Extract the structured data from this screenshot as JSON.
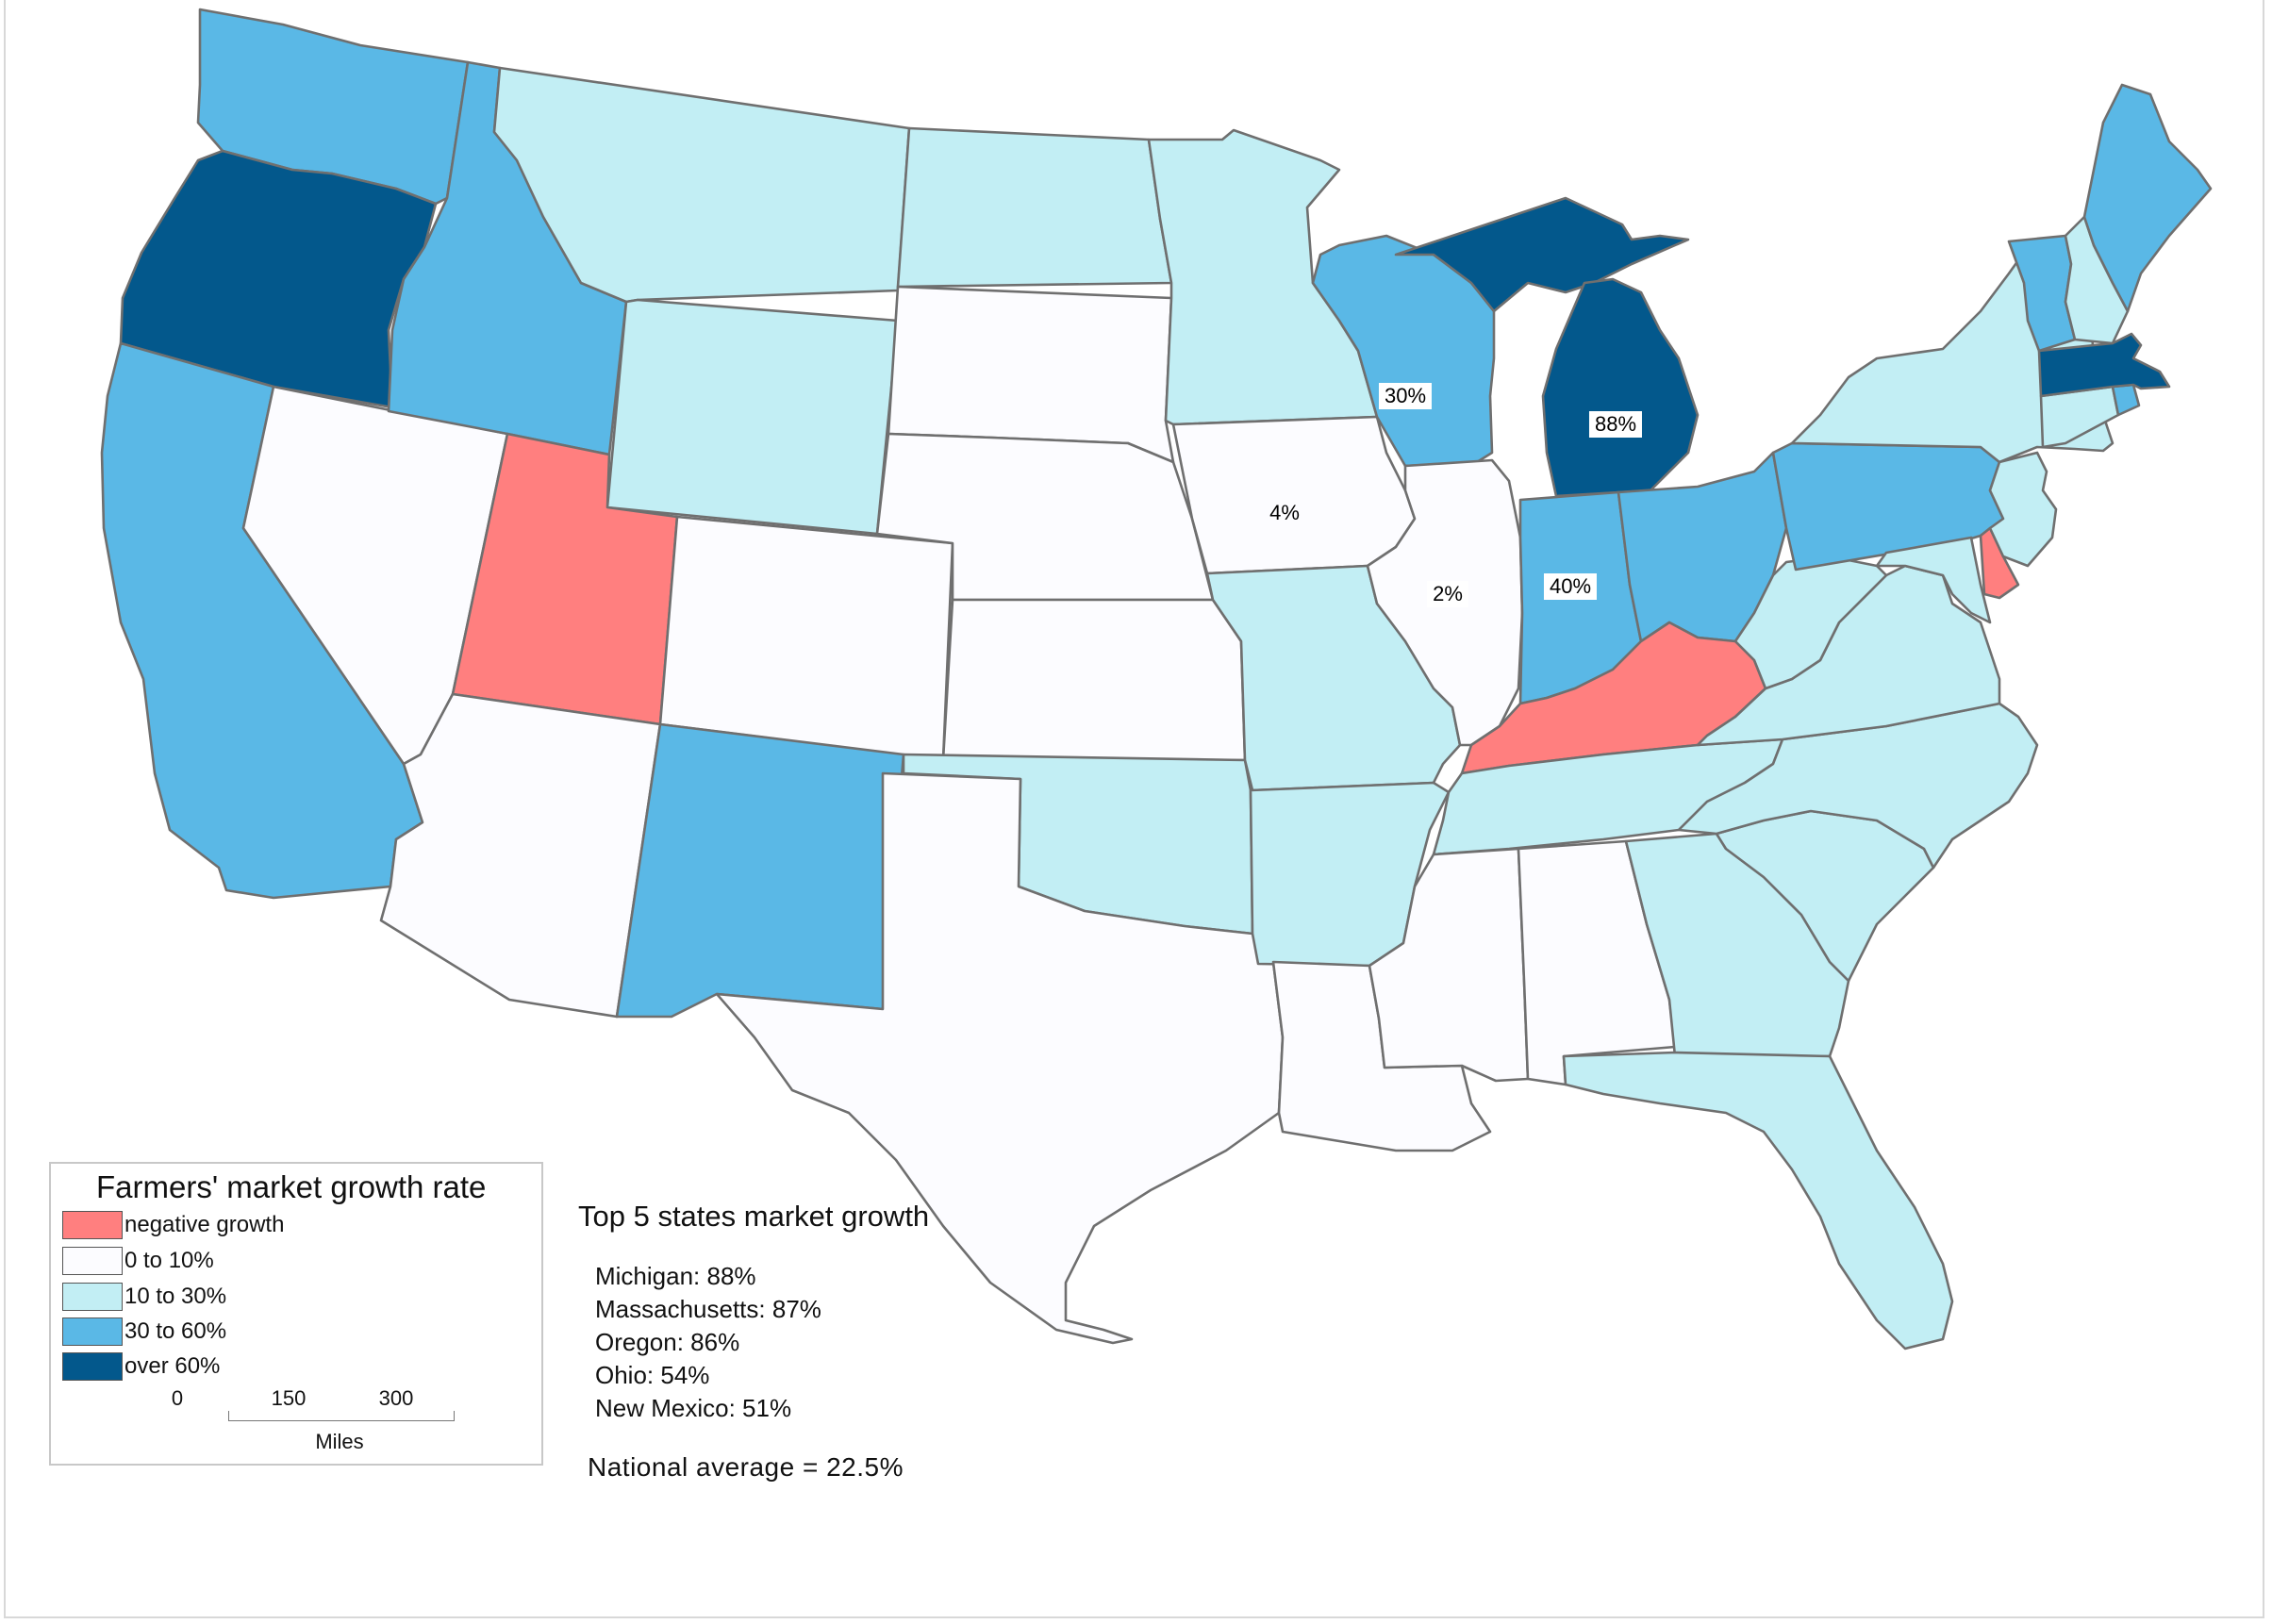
{
  "colors": {
    "negative": "#ff7f7f",
    "low": "#fcfcff",
    "mid": "#c2eef4",
    "high": "#5ab8e6",
    "top": "#03588c"
  },
  "legend": {
    "title": "Farmers' market growth rate",
    "items": [
      {
        "key": "negative",
        "label": "negative growth"
      },
      {
        "key": "low",
        "label": "0 to 10%"
      },
      {
        "key": "mid",
        "label": "10 to 30%"
      },
      {
        "key": "high",
        "label": "30 to 60%"
      },
      {
        "key": "top",
        "label": "over 60%"
      }
    ],
    "scale": {
      "ticks": [
        "0",
        "150",
        "300"
      ],
      "unit": "Miles"
    }
  },
  "map_labels": {
    "wisconsin": "30%",
    "michigan": "88%",
    "iowa": "4%",
    "illinois": "2%",
    "indiana": "40%"
  },
  "top5": {
    "title": "Top 5 states market growth",
    "items": [
      "Michigan: 88%",
      "Massachusetts: 87%",
      "Oregon: 86%",
      "Ohio: 54%",
      "New Mexico: 51%"
    ]
  },
  "national_average": "National average = 22.5%",
  "states": [
    {
      "name": "washington",
      "cls": "high"
    },
    {
      "name": "oregon",
      "cls": "top"
    },
    {
      "name": "california",
      "cls": "high"
    },
    {
      "name": "nevada",
      "cls": "low"
    },
    {
      "name": "idaho",
      "cls": "high"
    },
    {
      "name": "montana",
      "cls": "mid"
    },
    {
      "name": "wyoming",
      "cls": "mid"
    },
    {
      "name": "utah",
      "cls": "negative"
    },
    {
      "name": "arizona",
      "cls": "low"
    },
    {
      "name": "colorado",
      "cls": "low"
    },
    {
      "name": "new-mexico",
      "cls": "high"
    },
    {
      "name": "north-dakota",
      "cls": "mid"
    },
    {
      "name": "south-dakota",
      "cls": "low"
    },
    {
      "name": "nebraska",
      "cls": "low"
    },
    {
      "name": "kansas",
      "cls": "low"
    },
    {
      "name": "oklahoma",
      "cls": "mid"
    },
    {
      "name": "texas",
      "cls": "low"
    },
    {
      "name": "minnesota",
      "cls": "mid"
    },
    {
      "name": "iowa",
      "cls": "low"
    },
    {
      "name": "missouri",
      "cls": "mid"
    },
    {
      "name": "arkansas",
      "cls": "mid"
    },
    {
      "name": "louisiana",
      "cls": "low"
    },
    {
      "name": "wisconsin",
      "cls": "high"
    },
    {
      "name": "illinois",
      "cls": "low"
    },
    {
      "name": "michigan-upper",
      "cls": "top"
    },
    {
      "name": "michigan-lower",
      "cls": "top"
    },
    {
      "name": "indiana",
      "cls": "high"
    },
    {
      "name": "ohio",
      "cls": "high"
    },
    {
      "name": "kentucky",
      "cls": "negative"
    },
    {
      "name": "tennessee",
      "cls": "mid"
    },
    {
      "name": "mississippi",
      "cls": "low"
    },
    {
      "name": "alabama",
      "cls": "low"
    },
    {
      "name": "georgia",
      "cls": "mid"
    },
    {
      "name": "florida",
      "cls": "mid"
    },
    {
      "name": "south-carolina",
      "cls": "mid"
    },
    {
      "name": "north-carolina",
      "cls": "mid"
    },
    {
      "name": "virginia",
      "cls": "mid"
    },
    {
      "name": "west-virginia",
      "cls": "mid"
    },
    {
      "name": "pennsylvania",
      "cls": "high"
    },
    {
      "name": "new-york",
      "cls": "mid"
    },
    {
      "name": "maryland",
      "cls": "mid"
    },
    {
      "name": "delaware",
      "cls": "negative"
    },
    {
      "name": "new-jersey",
      "cls": "mid"
    },
    {
      "name": "connecticut",
      "cls": "mid"
    },
    {
      "name": "rhode-island",
      "cls": "high"
    },
    {
      "name": "massachusetts",
      "cls": "top"
    },
    {
      "name": "vermont",
      "cls": "high"
    },
    {
      "name": "new-hampshire",
      "cls": "mid"
    },
    {
      "name": "maine",
      "cls": "high"
    }
  ]
}
